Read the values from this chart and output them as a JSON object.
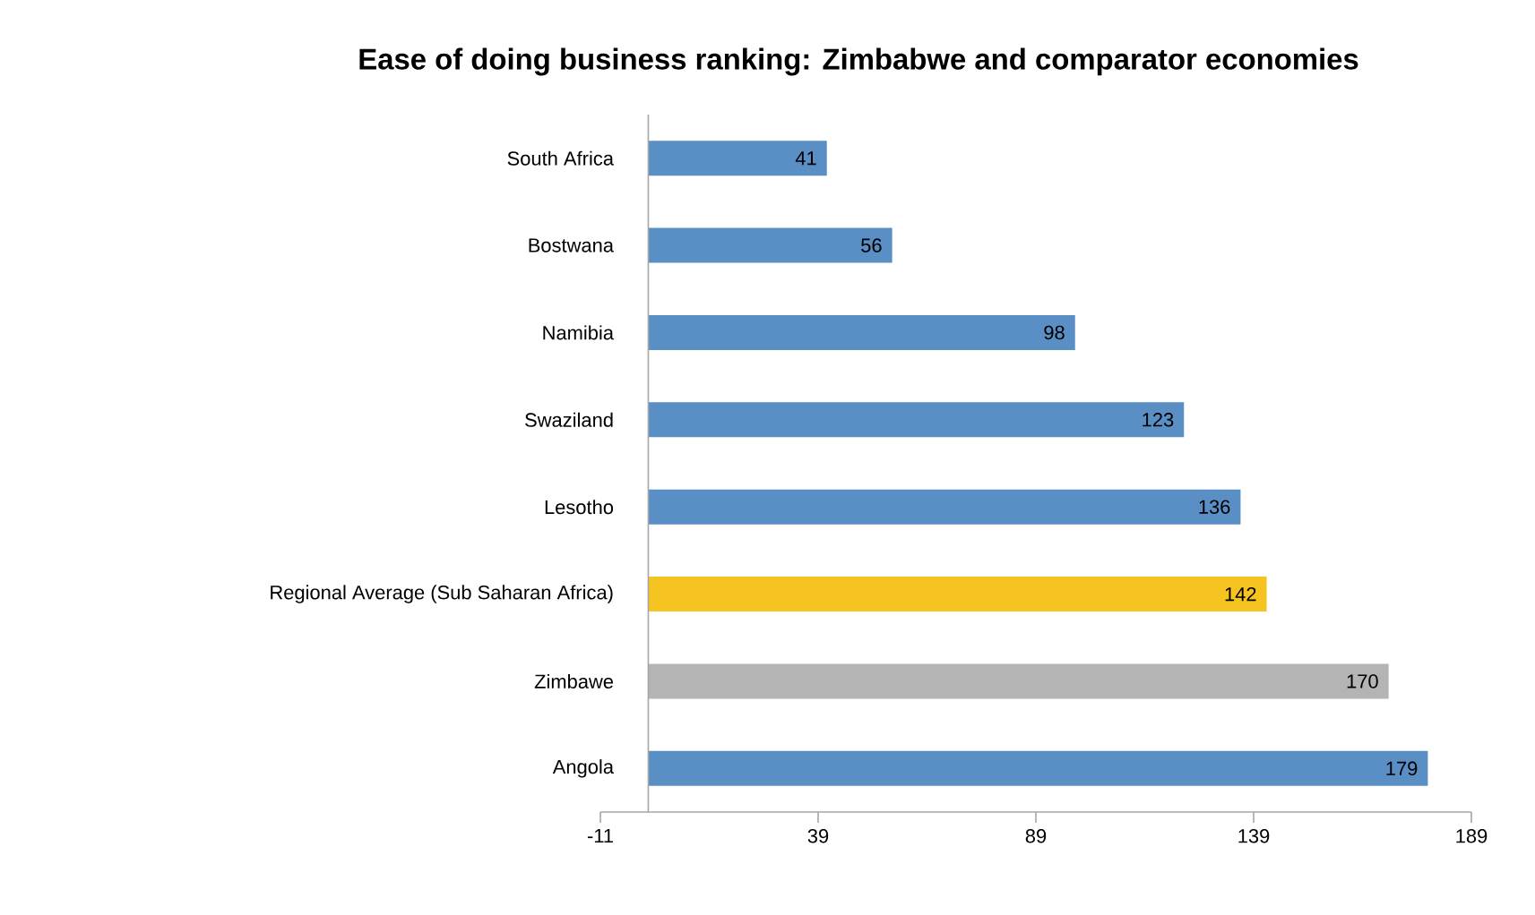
{
  "chart_data": {
    "type": "bar",
    "orientation": "horizontal",
    "title": "Ease of doing business ranking:  Zimbabwe and comparator economies",
    "categories": [
      "South Africa",
      "Bostwana",
      "Namibia",
      "Swaziland",
      "Lesotho",
      "Regional Average (Sub Saharan Africa)",
      "Zimbawe",
      "Angola"
    ],
    "values": [
      41,
      56,
      98,
      123,
      136,
      142,
      170,
      179
    ],
    "colors": [
      "#5a8fc6",
      "#5a8fc6",
      "#5a8fc6",
      "#5a8fc6",
      "#5a8fc6",
      "#f5c421",
      "#b4b4b4",
      "#5a8fc6"
    ],
    "xlim": [
      -11,
      189
    ],
    "xticks": [
      -11,
      39,
      89,
      139,
      189
    ],
    "data_labels": true,
    "grid": false
  }
}
